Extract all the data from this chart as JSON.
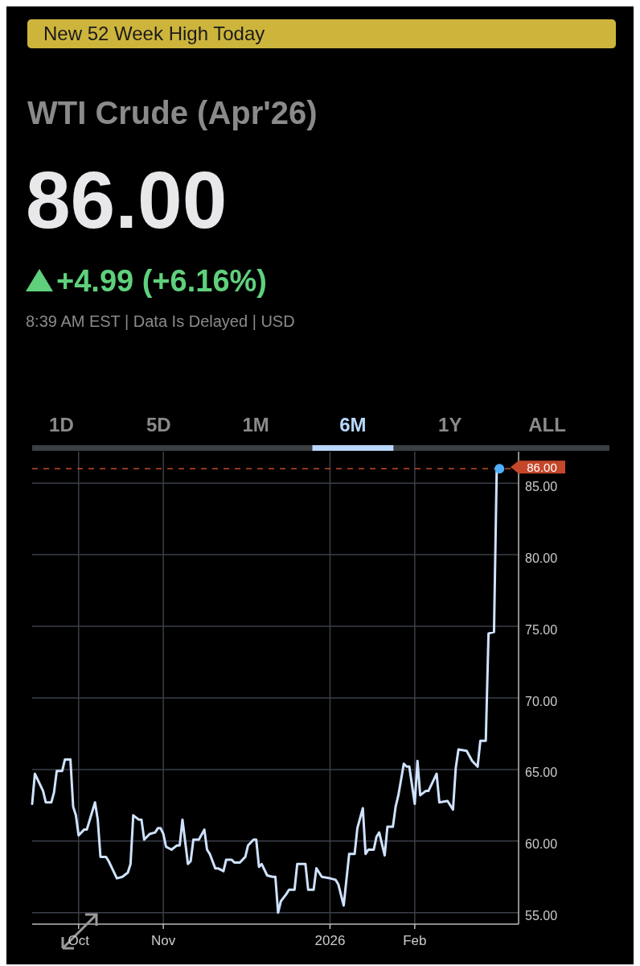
{
  "chart_data": {
    "type": "line",
    "title": "WTI Crude (Apr'26)",
    "annotations": [
      "New 52 Week High Today",
      "86.00",
      "+4.99 (+6.16%)",
      "8:39 AM EST | Data Is Delayed | USD",
      "1D",
      "5D",
      "1M",
      "6M",
      "1Y",
      "ALL"
    ],
    "series": [
      {
        "color": "#cfe2ff",
        "x": [
          "2025-09-14",
          "2025-09-15",
          "2025-09-18",
          "2025-09-19",
          "2025-09-21",
          "2025-09-22",
          "2025-09-23",
          "2025-09-25",
          "2025-09-26",
          "2025-09-28",
          "2025-09-29",
          "2025-09-30",
          "2025-10-01",
          "2025-10-03",
          "2025-10-04",
          "2025-10-07",
          "2025-10-08",
          "2025-10-09",
          "2025-10-11",
          "2025-10-12",
          "2025-10-13",
          "2025-10-15",
          "2025-10-17",
          "2025-10-19",
          "2025-10-20",
          "2025-10-21",
          "2025-10-23",
          "2025-10-24",
          "2025-10-25",
          "2025-10-27",
          "2025-10-29",
          "2025-10-30",
          "2025-10-31",
          "2025-11-01",
          "2025-11-02",
          "2025-11-04",
          "2025-11-06",
          "2025-11-07",
          "2025-11-08",
          "2025-11-10",
          "2025-11-11",
          "2025-11-12",
          "2025-11-14",
          "2025-11-16",
          "2025-11-17",
          "2025-11-18",
          "2025-11-20",
          "2025-11-21",
          "2025-11-23",
          "2025-11-24",
          "2025-11-26",
          "2025-11-27",
          "2025-11-29",
          "2025-12-01",
          "2025-12-02",
          "2025-12-04",
          "2025-12-05",
          "2025-12-06",
          "2025-12-07",
          "2025-12-09",
          "2025-12-11",
          "2025-12-12",
          "2025-12-13",
          "2025-12-14",
          "2025-12-16",
          "2025-12-17",
          "2025-12-19",
          "2025-12-20",
          "2025-12-23",
          "2025-12-24",
          "2025-12-26",
          "2025-12-27",
          "2025-12-29",
          "2026-01-01",
          "2026-01-03",
          "2026-01-04",
          "2026-01-06",
          "2026-01-08",
          "2026-01-10",
          "2026-01-11",
          "2026-01-13",
          "2026-01-14",
          "2026-01-15",
          "2026-01-17",
          "2026-01-18",
          "2026-01-19",
          "2026-01-21",
          "2026-01-22",
          "2026-01-24",
          "2026-01-25",
          "2026-01-26",
          "2026-01-28",
          "2026-01-29",
          "2026-01-30",
          "2026-02-01",
          "2026-02-02",
          "2026-02-03",
          "2026-02-05",
          "2026-02-06",
          "2026-02-09",
          "2026-02-10",
          "2026-02-13",
          "2026-02-15",
          "2026-02-16",
          "2026-02-17",
          "2026-02-20",
          "2026-02-22",
          "2026-02-24",
          "2026-02-25",
          "2026-02-27",
          "2026-02-28",
          "2026-03-02",
          "2026-03-03",
          "2026-03-04"
        ],
        "values": [
          62.6,
          64.7,
          63.5,
          62.7,
          62.7,
          63.4,
          64.9,
          64.9,
          65.7,
          65.7,
          62.4,
          61.8,
          60.4,
          60.8,
          60.8,
          62.7,
          61.5,
          58.9,
          58.9,
          58.6,
          58.2,
          57.4,
          57.5,
          57.8,
          58.4,
          61.8,
          61.5,
          61.5,
          60.1,
          60.5,
          60.6,
          60.9,
          60.9,
          60.5,
          59.6,
          59.4,
          59.7,
          59.7,
          61.5,
          58.4,
          58.6,
          60.1,
          60.1,
          60.8,
          59.4,
          59.1,
          58.1,
          58.1,
          57.9,
          58.7,
          58.7,
          58.5,
          58.5,
          58.9,
          59.7,
          60.1,
          60.1,
          58.2,
          58.4,
          57.6,
          57.5,
          57.5,
          55.0,
          55.8,
          56.3,
          56.6,
          56.6,
          58.4,
          58.4,
          56.6,
          56.6,
          58.1,
          57.5,
          57.4,
          57.3,
          57.0,
          55.5,
          59.1,
          59.1,
          60.9,
          62.3,
          59.1,
          59.4,
          59.4,
          60.3,
          60.6,
          59.0,
          61.0,
          61.0,
          62.4,
          63.2,
          65.4,
          65.2,
          65.2,
          62.6,
          65.6,
          63.2,
          63.5,
          63.5,
          64.7,
          62.7,
          62.8,
          62.2,
          65.1,
          66.4,
          66.3,
          65.6,
          65.2,
          67.0,
          67.0,
          74.5,
          74.6,
          86.0,
          86.0
        ]
      }
    ],
    "xlim": [
      "2025-09-14",
      "2026-03-11"
    ],
    "xticks": [
      {
        "value": "2025-10-01",
        "label": "Oct"
      },
      {
        "value": "2025-11-01",
        "label": "Nov"
      },
      {
        "value": "2026-01-01",
        "label": "2026"
      },
      {
        "value": "2026-02-01",
        "label": "Feb"
      }
    ],
    "ylim": [
      54.2,
      87.2
    ],
    "yticks": [
      {
        "value": 55,
        "label": "55.00"
      },
      {
        "value": 60,
        "label": "60.00"
      },
      {
        "value": 65,
        "label": "65.00"
      },
      {
        "value": 70,
        "label": "70.00"
      },
      {
        "value": 75,
        "label": "75.00"
      },
      {
        "value": 80,
        "label": "80.00"
      },
      {
        "value": 85,
        "label": "85.00"
      }
    ],
    "ref_lines": [
      {
        "axis": "y",
        "value": 86,
        "label": "86.00",
        "color": "#c4472b",
        "line_style": "dashed"
      }
    ],
    "grid": true,
    "marker": "none",
    "line_style": "solid"
  }
}
